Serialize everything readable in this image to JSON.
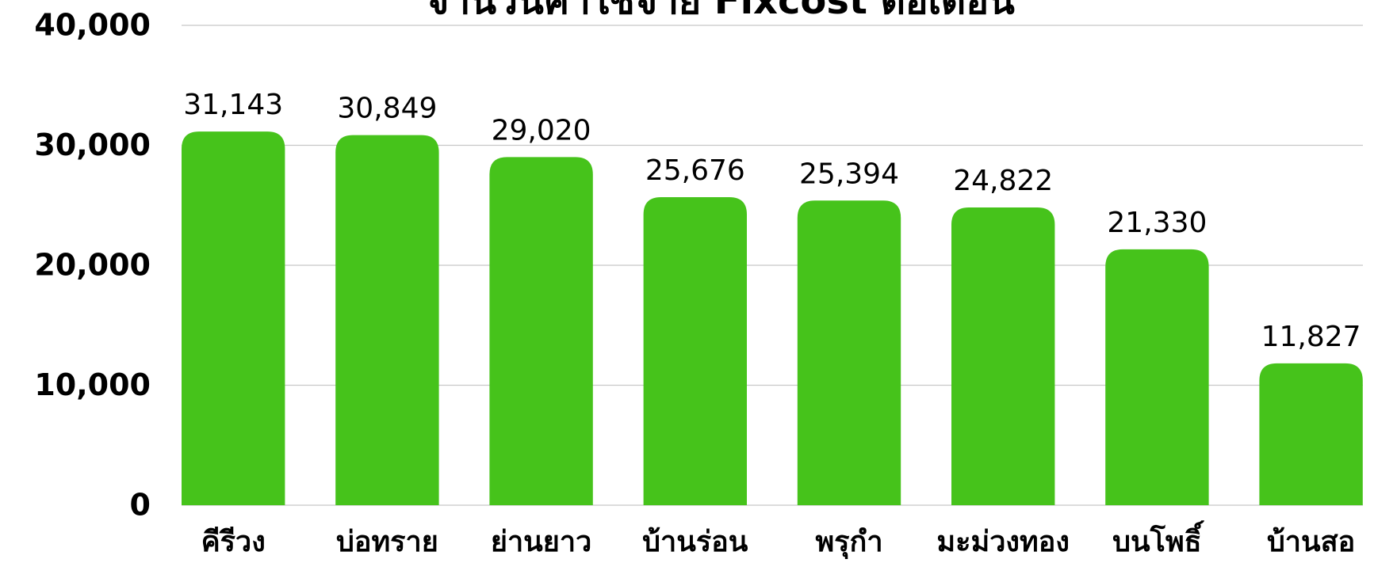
{
  "chart_data": {
    "type": "bar",
    "title": "จำนวนค่าใช้จ่าย Fixcost ต่อเดือน",
    "categories": [
      "คีรีวง",
      "บ่อทราย",
      "ย่านยาว",
      "บ้านร่อน",
      "พรุกำ",
      "มะม่วงทอง",
      "บนโพธิ์",
      "บ้านสอ"
    ],
    "values": [
      31143,
      30849,
      29020,
      25676,
      25394,
      24822,
      21330,
      11827
    ],
    "value_labels": [
      "31,143",
      "30,849",
      "29,020",
      "25,676",
      "25,394",
      "24,822",
      "21,330",
      "11,827"
    ],
    "color": "#46c31b",
    "ylim": [
      0,
      40000
    ],
    "yticks": [
      {
        "value": 0,
        "label": "0"
      },
      {
        "value": 10000,
        "label": "10,000"
      },
      {
        "value": 20000,
        "label": "20,000"
      },
      {
        "value": 30000,
        "label": "30,000"
      },
      {
        "value": 40000,
        "label": "40,000"
      }
    ],
    "grid": true
  }
}
